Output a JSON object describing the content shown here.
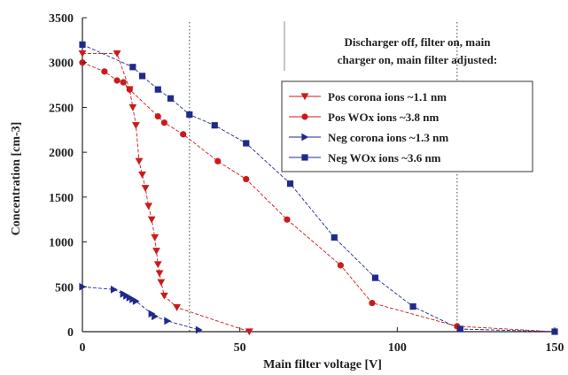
{
  "chart_data": {
    "type": "line",
    "xlabel": "Main filter voltage [V]",
    "ylabel": "Concentration  [cm-3]",
    "xlim": [
      0,
      150
    ],
    "ylim": [
      0,
      3500
    ],
    "x_ticks": [
      0,
      50,
      100,
      150
    ],
    "y_ticks": [
      0,
      500,
      1000,
      1500,
      2000,
      2500,
      3000,
      3500
    ],
    "grid": false,
    "legend_position": "right",
    "annotation": [
      "Discharger off, filter on, main",
      "charger on, main filter adjusted:"
    ],
    "vertical_lines": [
      34,
      119
    ],
    "colors": {
      "red": "#cc1a1a",
      "blue": "#1f2a8c",
      "axis": "#222222"
    },
    "series": [
      {
        "name": "Pos corona ions ~1.1 nm",
        "color": "#cc1a1a",
        "marker": "triangle-down",
        "x": [
          0,
          11,
          15,
          16,
          17,
          18,
          19,
          20,
          21,
          22,
          23,
          23.5,
          24,
          24.5,
          25,
          26,
          30,
          53
        ],
        "y": [
          3100,
          3100,
          2700,
          2500,
          2300,
          1900,
          1750,
          1600,
          1400,
          1250,
          1050,
          900,
          750,
          650,
          550,
          400,
          270,
          0
        ]
      },
      {
        "name": "Pos WOx ions ~3.8 nm",
        "color": "#cc1a1a",
        "marker": "circle",
        "x": [
          0,
          7,
          11,
          13,
          15,
          24,
          26,
          32,
          43,
          52,
          65,
          82,
          92,
          119,
          150
        ],
        "y": [
          3000,
          2900,
          2800,
          2780,
          2700,
          2400,
          2330,
          2200,
          1900,
          1700,
          1250,
          740,
          320,
          60,
          0
        ]
      },
      {
        "name": "Neg corona ions ~1.3 nm",
        "color": "#1f2a8c",
        "marker": "triangle-right",
        "x": [
          0,
          10,
          13,
          14,
          15,
          16,
          17,
          22,
          23,
          27,
          37
        ],
        "y": [
          500,
          470,
          420,
          400,
          380,
          360,
          340,
          200,
          170,
          120,
          20
        ]
      },
      {
        "name": "Neg WOx ions ~3.6 nm",
        "color": "#1f2a8c",
        "marker": "square",
        "x": [
          0,
          16,
          19,
          24,
          28,
          34,
          42,
          52,
          66,
          80,
          93,
          105,
          120,
          150
        ],
        "y": [
          3200,
          2950,
          2850,
          2700,
          2600,
          2420,
          2300,
          2100,
          1650,
          1050,
          600,
          280,
          30,
          0
        ]
      }
    ]
  }
}
